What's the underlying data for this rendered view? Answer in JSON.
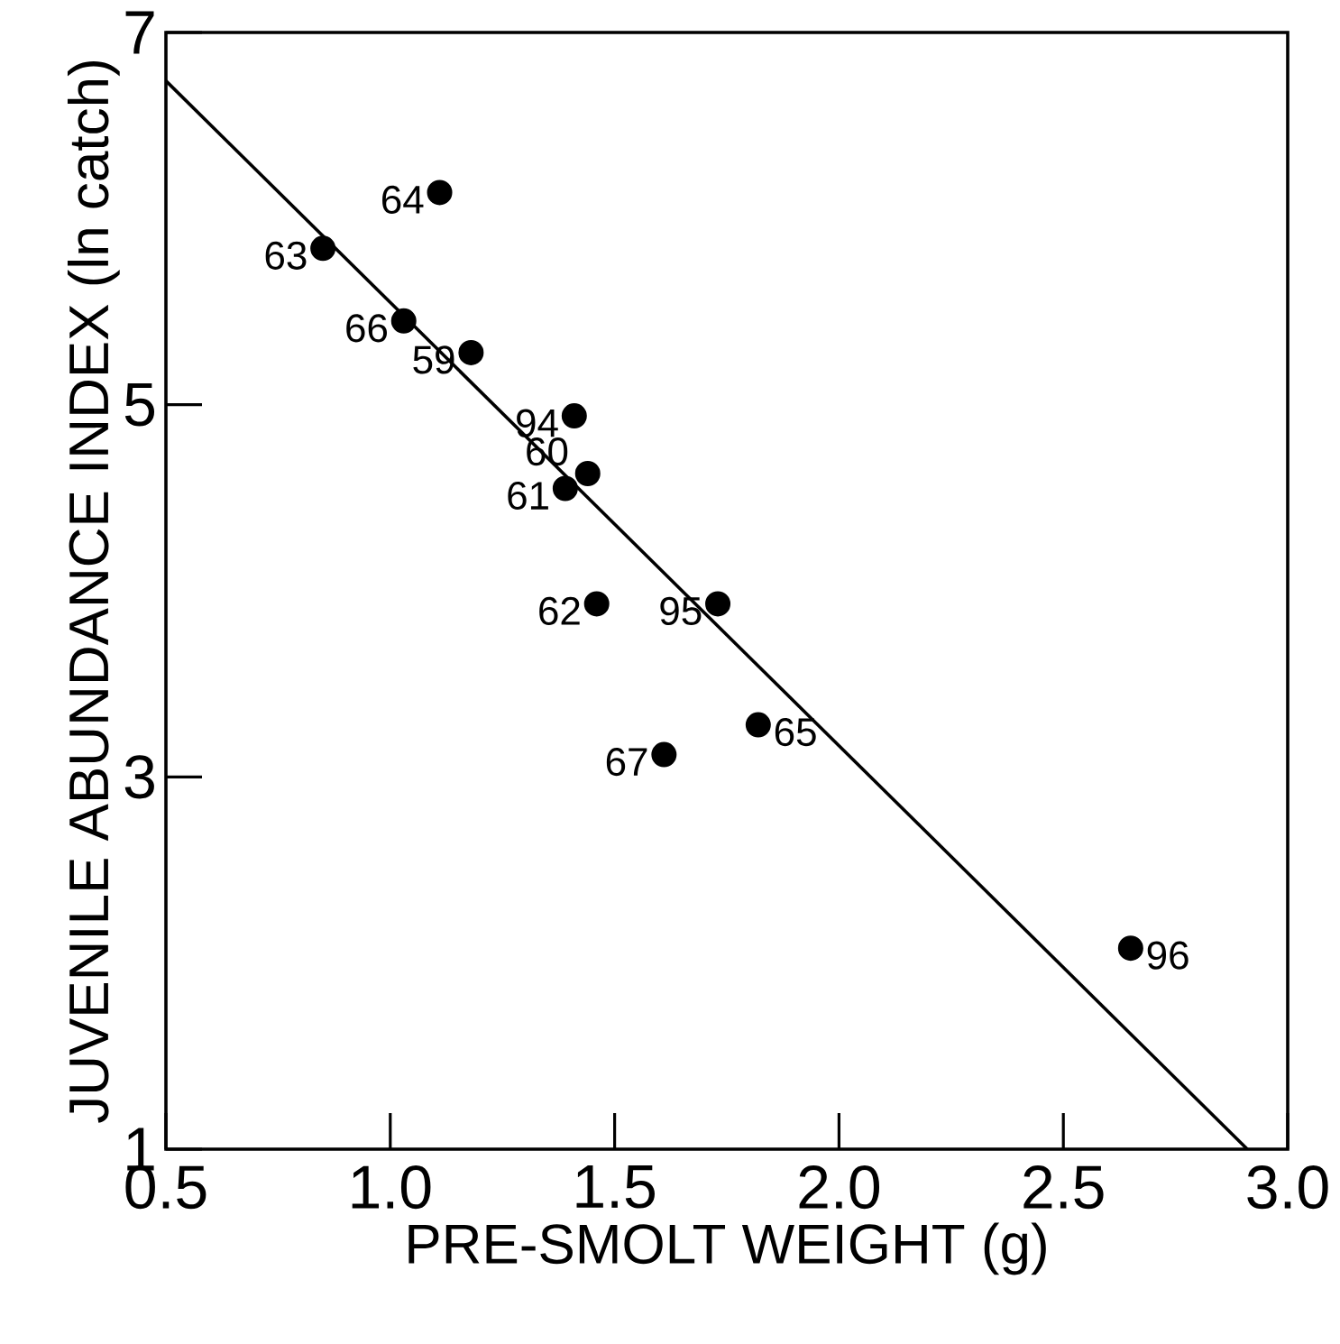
{
  "chart_data": {
    "type": "scatter",
    "xlabel": "PRE-SMOLT WEIGHT (g)",
    "ylabel": "JUVENILE ABUNDANCE INDEX (ln catch)",
    "xlim": [
      0.5,
      3.0
    ],
    "ylim": [
      1,
      7
    ],
    "xticks": [
      0.5,
      {
        "value": 1.0,
        "label": "1.0"
      },
      1.5,
      {
        "value": 2.0,
        "label": "2.0"
      },
      2.5,
      {
        "value": 3.0,
        "label": "3.0"
      }
    ],
    "yticks": [
      1,
      3,
      5,
      7
    ],
    "series": [
      {
        "marker": "circle",
        "color": "#000000",
        "x": [
          0.85,
          1.11,
          1.03,
          1.18,
          1.41,
          1.44,
          1.39,
          1.46,
          1.73,
          1.82,
          1.61,
          2.65
        ],
        "values": [
          5.84,
          6.14,
          5.45,
          5.28,
          4.94,
          4.63,
          4.55,
          3.93,
          3.93,
          3.28,
          3.12,
          2.08
        ]
      },
      {
        "type": "line",
        "color": "#000000",
        "marker": "none",
        "x": [
          0.5,
          2.91
        ],
        "values": [
          6.74,
          1.0
        ]
      }
    ],
    "annotations": [
      {
        "text": "63",
        "x": 0.85,
        "y": 5.84
      },
      {
        "text": "64",
        "x": 1.11,
        "y": 6.14
      },
      {
        "text": "66",
        "x": 1.03,
        "y": 5.45
      },
      {
        "text": "59",
        "x": 1.18,
        "y": 5.28
      },
      {
        "text": "94",
        "x": 1.41,
        "y": 4.94
      },
      {
        "text": "60",
        "x": 1.44,
        "y": 4.63
      },
      {
        "text": "61",
        "x": 1.39,
        "y": 4.55
      },
      {
        "text": "62",
        "x": 1.46,
        "y": 3.93
      },
      {
        "text": "95",
        "x": 1.73,
        "y": 3.93
      },
      {
        "text": "65",
        "x": 1.82,
        "y": 3.28
      },
      {
        "text": "67",
        "x": 1.61,
        "y": 3.12
      },
      {
        "text": "96",
        "x": 2.65,
        "y": 2.08
      }
    ]
  }
}
